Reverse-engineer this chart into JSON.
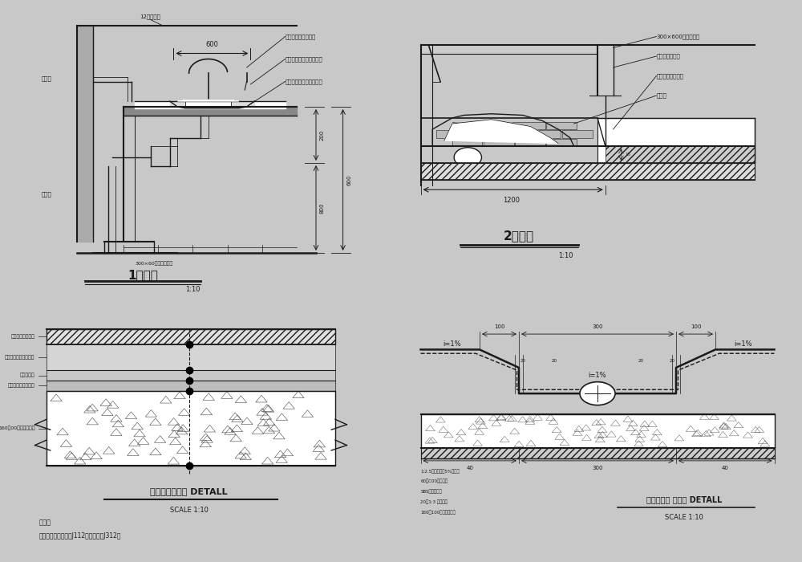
{
  "bg_color": "#c8c8c8",
  "panel_bg": "#e8e8e8",
  "line_color": "#1a1a1a",
  "title1": "1剖面图",
  "title2": "2剖面图",
  "title3": "地面铺设大样图 DETALL",
  "title4": "卫生间地漏 大样图 DETALL",
  "scale1": "1:10",
  "scale2": "1:10",
  "scale3": "SCALE 1:10",
  "scale4": "SCALE 1:10",
  "note_title": "说明：",
  "note_text": "本案设计依据《西南J112》、《西南J312》",
  "labels_p1": [
    "12厚华边镜",
    "水龙头（设计选样）",
    "台上洗手盆（设计选样）",
    "白色人造石（设计选样）",
    "给水管",
    "排水管",
    "300×60仿米黄瓷化砖"
  ],
  "labels_p2": [
    "300×600白色木纹石",
    "成品卫生间隔断",
    "页岩砖（填充物）",
    "蹲便器"
  ],
  "labels_p3": [
    "玻化砖水泥浆擦缝",
    "干硬性水泥砂浆结合层",
    "防水处理层",
    "素水泥浆结合层一道",
    "160厚00号现浇混凝土"
  ],
  "labels_p4": [
    "1:2.5水泥砂浆加5%防水粉",
    "60厚C00号混凝土",
    "SBS防水处理层",
    "20厚1:3 素水泥浆",
    "160厚100号现浇混凝土"
  ]
}
